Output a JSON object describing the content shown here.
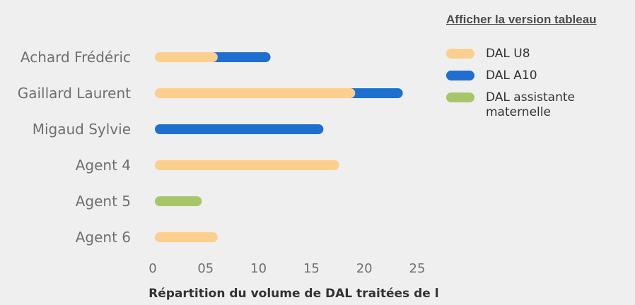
{
  "table_link": "Afficher la version tableau",
  "colors": {
    "dal_u8": "#fccf8e",
    "dal_a10": "#1f6fd1",
    "dal_assistante": "#a6c769",
    "background": "#efefef"
  },
  "chart_data": {
    "type": "bar",
    "orientation": "horizontal",
    "stacked": true,
    "categories": [
      "Achard Frédéric",
      "Gaillard Laurent",
      "Migaud Sylvie",
      "Agent 4",
      "Agent 5",
      "Agent 6"
    ],
    "series": [
      {
        "name": "DAL U8",
        "values": [
          5,
          18,
          0,
          16.5,
          0,
          5
        ]
      },
      {
        "name": "DAL A10",
        "values": [
          5,
          4.5,
          15,
          0,
          0,
          0
        ]
      },
      {
        "name": "DAL assistante maternelle",
        "values": [
          0,
          0,
          0,
          0,
          3.5,
          0
        ]
      }
    ],
    "xticks": [
      "0",
      "05",
      "10",
      "15",
      "20",
      "25"
    ],
    "xlim": [
      0,
      25
    ],
    "xlabel": "Répartition du volume de DAL traitées de l’agence",
    "ylabel": "",
    "legend_position": "top-right",
    "grid": false
  }
}
